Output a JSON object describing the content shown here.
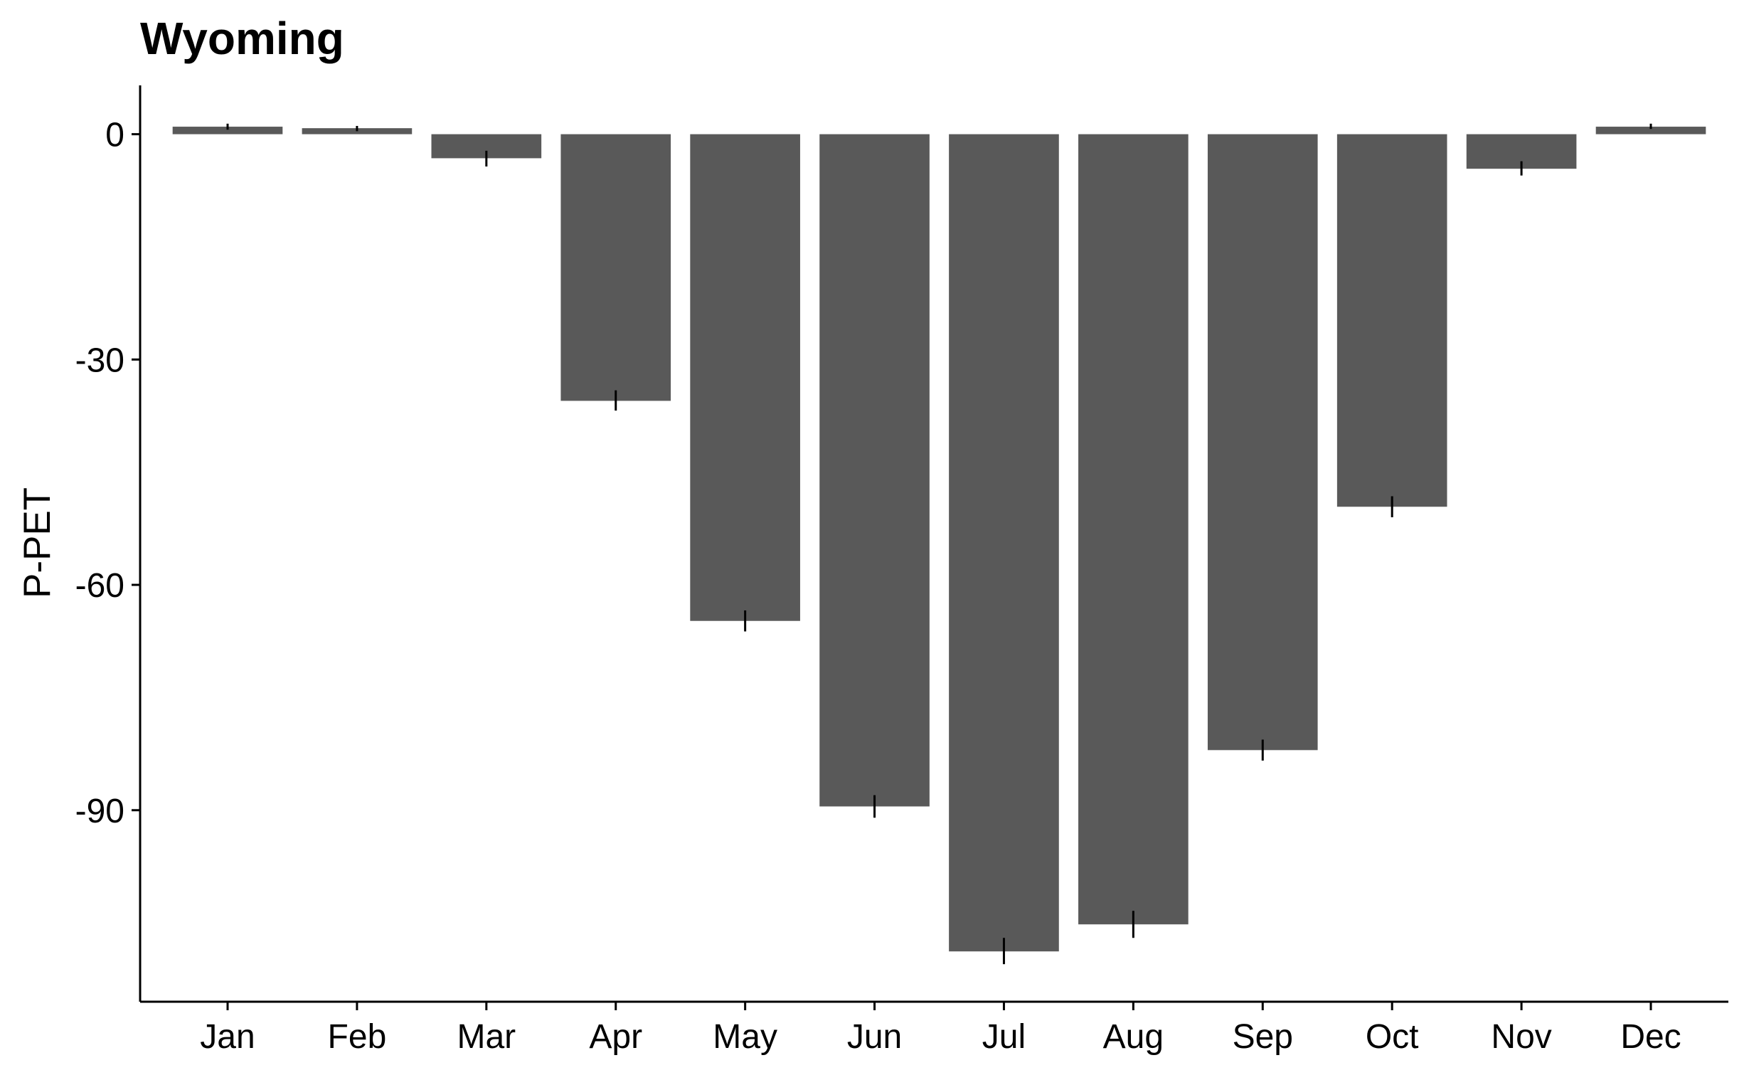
{
  "chart_data": {
    "type": "bar",
    "title": "Wyoming",
    "xlabel": "",
    "ylabel": "P-PET",
    "categories": [
      "Jan",
      "Feb",
      "Mar",
      "Apr",
      "May",
      "Jun",
      "Jul",
      "Aug",
      "Sep",
      "Oct",
      "Nov",
      "Dec"
    ],
    "values": [
      1.0,
      0.8,
      -3.2,
      -35.5,
      -64.8,
      -89.5,
      -108.8,
      -105.2,
      -82.0,
      -49.6,
      -4.6,
      1.0
    ],
    "error_bars": [
      {
        "low": 0.6,
        "high": 1.4
      },
      {
        "low": 0.4,
        "high": 1.1
      },
      {
        "low": -4.3,
        "high": -2.2
      },
      {
        "low": -36.8,
        "high": -34.1
      },
      {
        "low": -66.2,
        "high": -63.4
      },
      {
        "low": -91.0,
        "high": -88.0
      },
      {
        "low": -110.5,
        "high": -107.0
      },
      {
        "low": -107.0,
        "high": -103.4
      },
      {
        "low": -83.4,
        "high": -80.6
      },
      {
        "low": -51.0,
        "high": -48.2
      },
      {
        "low": -5.5,
        "high": -3.6
      },
      {
        "low": 0.7,
        "high": 1.4
      }
    ],
    "yticks": [
      0,
      -30,
      -60,
      -90
    ],
    "ytick_labels": [
      "0",
      "-30",
      "-60",
      "-90"
    ],
    "ylim": [
      -115.5,
      6.5
    ],
    "grid": false,
    "legend": "none",
    "bar_color": "#595959",
    "error_bar_color": "#000000"
  }
}
